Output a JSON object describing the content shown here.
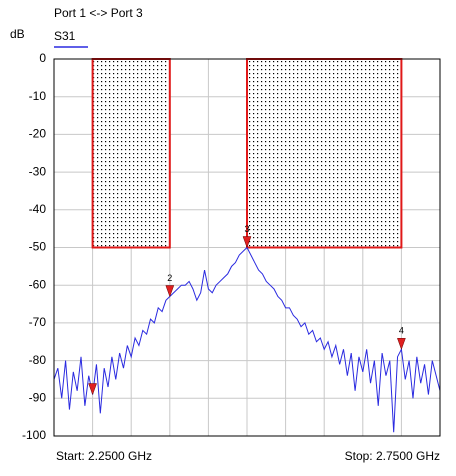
{
  "chart_data": {
    "type": "line",
    "title": "Port 1 <-> Port 3",
    "y_label": "dB",
    "start_label": "Start: 2.2500 GHz",
    "stop_label": "Stop: 2.7500 GHz",
    "xlim": [
      2.25,
      2.75
    ],
    "xticks": [
      2.25,
      2.3,
      2.35,
      2.4,
      2.45,
      2.5,
      2.55,
      2.6,
      2.65,
      2.7,
      2.75
    ],
    "ylim": [
      -100,
      0
    ],
    "yticks": [
      0,
      -10,
      -20,
      -30,
      -40,
      -50,
      -60,
      -70,
      -80,
      -90,
      -100
    ],
    "grid": true,
    "x": [
      2.25,
      2.255,
      2.26,
      2.265,
      2.27,
      2.275,
      2.28,
      2.285,
      2.29,
      2.295,
      2.3,
      2.305,
      2.31,
      2.315,
      2.32,
      2.325,
      2.33,
      2.335,
      2.34,
      2.345,
      2.35,
      2.355,
      2.36,
      2.365,
      2.37,
      2.375,
      2.38,
      2.385,
      2.39,
      2.395,
      2.4,
      2.405,
      2.41,
      2.415,
      2.42,
      2.425,
      2.43,
      2.435,
      2.44,
      2.445,
      2.45,
      2.455,
      2.46,
      2.465,
      2.47,
      2.475,
      2.48,
      2.485,
      2.49,
      2.495,
      2.5,
      2.505,
      2.51,
      2.515,
      2.52,
      2.525,
      2.53,
      2.535,
      2.54,
      2.545,
      2.55,
      2.555,
      2.56,
      2.565,
      2.57,
      2.575,
      2.58,
      2.585,
      2.59,
      2.595,
      2.6,
      2.605,
      2.61,
      2.615,
      2.62,
      2.625,
      2.63,
      2.635,
      2.64,
      2.645,
      2.65,
      2.655,
      2.66,
      2.665,
      2.67,
      2.675,
      2.68,
      2.685,
      2.69,
      2.695,
      2.7,
      2.705,
      2.71,
      2.715,
      2.72,
      2.725,
      2.73,
      2.735,
      2.74,
      2.745,
      2.75
    ],
    "series": [
      {
        "name": "S31",
        "color": "#2a2ae0",
        "values": [
          -85,
          -82,
          -90,
          -80,
          -93,
          -83,
          -88,
          -79,
          -92,
          -84,
          -89,
          -81,
          -94,
          -82,
          -87,
          -79,
          -85,
          -78,
          -82,
          -76,
          -79,
          -74,
          -76,
          -72,
          -73,
          -69,
          -70,
          -66,
          -67,
          -64,
          -63,
          -62,
          -61,
          -60,
          -60,
          -59,
          -61,
          -64,
          -62,
          -56,
          -61,
          -62,
          -60,
          -59,
          -58,
          -57,
          -55,
          -54,
          -52,
          -51,
          -50,
          -52,
          -54,
          -56,
          -57,
          -59,
          -60,
          -61,
          -63,
          -64,
          -66,
          -66,
          -68,
          -69,
          -71,
          -70,
          -73,
          -72,
          -75,
          -74,
          -77,
          -75,
          -79,
          -76,
          -81,
          -77,
          -84,
          -78,
          -88,
          -79,
          -83,
          -77,
          -86,
          -80,
          -92,
          -78,
          -84,
          -80,
          -99,
          -79,
          -77,
          -85,
          -80,
          -90,
          -79,
          -86,
          -81,
          -89,
          -80,
          -84,
          -88
        ]
      }
    ],
    "markers": [
      {
        "x": 2.3,
        "value": -89
      },
      {
        "label": "2",
        "x": 2.4,
        "value": -63
      },
      {
        "label": "3",
        "x": 2.5,
        "value": -50
      },
      {
        "label": "4",
        "x": 2.7,
        "value": -77
      }
    ],
    "marker_color": "#e02020",
    "limits": [
      {
        "x": [
          2.3,
          2.4
        ],
        "value": -50
      },
      {
        "x": [
          2.5,
          2.7
        ],
        "value": -50
      }
    ],
    "limit_color": "#e01818"
  }
}
